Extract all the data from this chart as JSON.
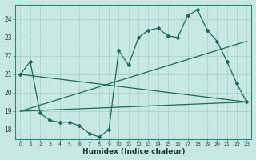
{
  "xlabel": "Humidex (Indice chaleur)",
  "bg_color": "#c8e8e8",
  "grid_color": "#a8cece",
  "line_color": "#1a6a5a",
  "xlim": [
    -0.5,
    23.5
  ],
  "ylim": [
    17.5,
    24.8
  ],
  "yticks": [
    18,
    19,
    20,
    21,
    22,
    23,
    24
  ],
  "xticks": [
    0,
    1,
    2,
    3,
    4,
    5,
    6,
    7,
    8,
    9,
    10,
    11,
    12,
    13,
    14,
    15,
    16,
    17,
    18,
    19,
    20,
    21,
    22,
    23
  ],
  "line1_x": [
    0,
    1,
    2,
    3,
    4,
    5,
    6,
    7,
    8,
    9,
    10,
    11,
    12,
    13,
    14,
    15,
    16,
    17,
    18,
    19,
    20,
    21,
    22,
    23
  ],
  "line1_y": [
    21.0,
    21.7,
    18.9,
    18.5,
    18.4,
    18.4,
    18.2,
    17.8,
    17.6,
    18.0,
    22.3,
    21.5,
    23.0,
    23.4,
    23.5,
    23.1,
    23.0,
    24.2,
    24.5,
    23.4,
    22.8,
    21.7,
    20.5,
    19.5
  ],
  "line2_x": [
    0,
    23
  ],
  "line2_y": [
    21.0,
    19.5
  ],
  "line3_x": [
    0,
    23
  ],
  "line3_y": [
    19.0,
    22.8
  ],
  "line4_x": [
    0,
    23
  ],
  "line4_y": [
    19.0,
    19.5
  ]
}
